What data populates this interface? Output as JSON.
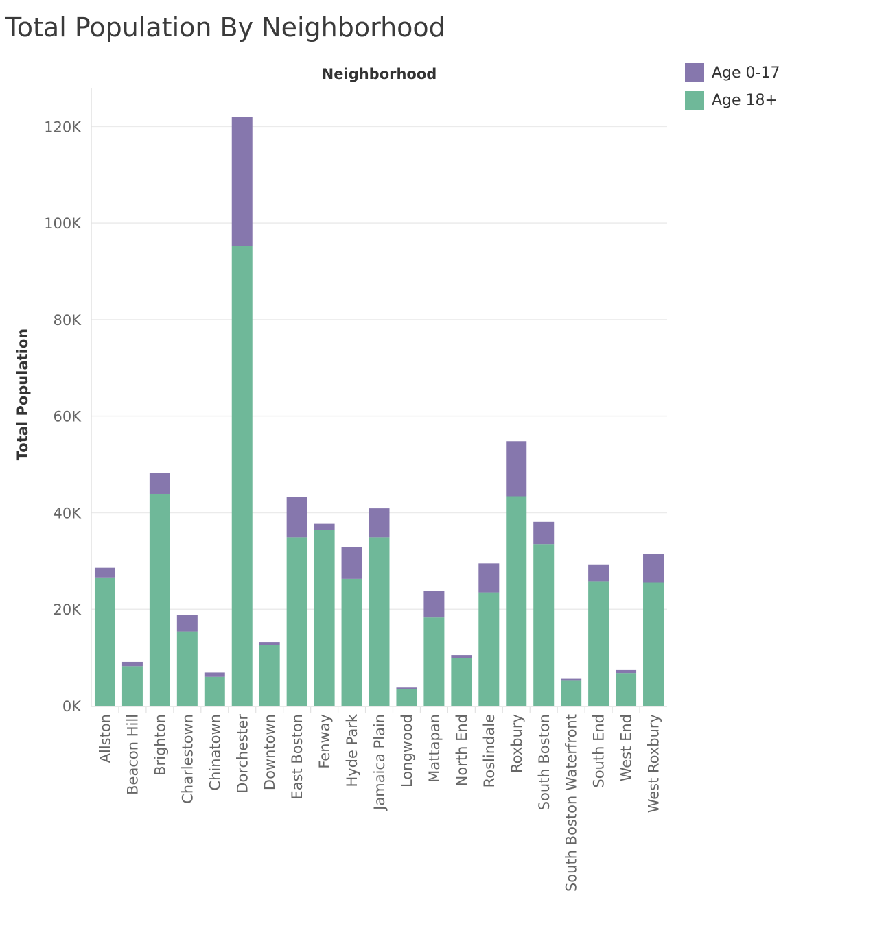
{
  "title": "Total Population By Neighborhood",
  "legend": {
    "items": [
      {
        "label": "Age 0-17",
        "color": "#8677AD"
      },
      {
        "label": "Age 18+",
        "color": "#6FB899"
      }
    ]
  },
  "chart_data": {
    "type": "bar",
    "stacked": true,
    "title": "Total Population By Neighborhood",
    "xlabel": "Neighborhood",
    "ylabel": "Total Population",
    "xlabel_position": "top",
    "legend_position": "top-right",
    "grid": true,
    "ylim": [
      0,
      128000
    ],
    "yticks": [
      0,
      20000,
      40000,
      60000,
      80000,
      100000,
      120000
    ],
    "ytick_labels": [
      "0K",
      "20K",
      "40K",
      "60K",
      "80K",
      "100K",
      "120K"
    ],
    "categories": [
      "Allston",
      "Beacon Hill",
      "Brighton",
      "Charlestown",
      "Chinatown",
      "Dorchester",
      "Downtown",
      "East Boston",
      "Fenway",
      "Hyde Park",
      "Jamaica Plain",
      "Longwood",
      "Mattapan",
      "North End",
      "Roslindale",
      "Roxbury",
      "South Boston",
      "South Boston Waterfront",
      "South End",
      "West End",
      "West Roxbury"
    ],
    "series": [
      {
        "name": "Age 18+",
        "color": "#6FB899",
        "values": [
          26600,
          8200,
          43900,
          15400,
          6000,
          95300,
          12600,
          34900,
          36500,
          26300,
          34900,
          3500,
          18300,
          9900,
          23500,
          43400,
          33500,
          5200,
          25800,
          6800,
          25500
        ]
      },
      {
        "name": "Age 0-17",
        "color": "#8677AD",
        "values": [
          2000,
          900,
          4300,
          3400,
          900,
          26700,
          600,
          8300,
          1200,
          6600,
          6000,
          300,
          5500,
          600,
          6000,
          11400,
          4600,
          400,
          3500,
          600,
          6000
        ]
      }
    ]
  }
}
